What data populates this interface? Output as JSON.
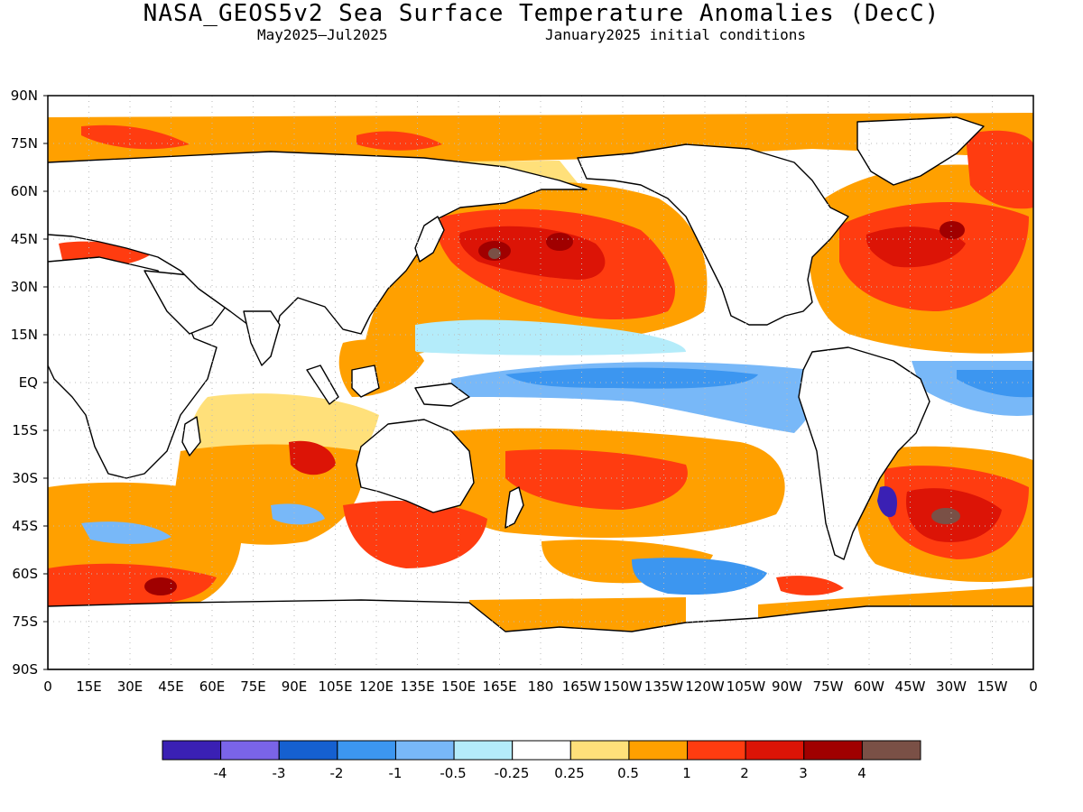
{
  "title": "NASA_GEOS5v2 Sea Surface Temperature Anomalies (DecC)",
  "subtitle_left": "May2025–Jul2025",
  "subtitle_right": "January2025 initial conditions",
  "lat_labels": [
    "90N",
    "75N",
    "60N",
    "45N",
    "30N",
    "15N",
    "EQ",
    "15S",
    "30S",
    "45S",
    "60S",
    "75S",
    "90S"
  ],
  "lon_labels": [
    "0",
    "15E",
    "30E",
    "45E",
    "60E",
    "75E",
    "90E",
    "105E",
    "120E",
    "135E",
    "150E",
    "165E",
    "180",
    "165W",
    "150W",
    "135W",
    "120W",
    "105W",
    "90W",
    "75W",
    "60W",
    "45W",
    "30W",
    "15W",
    "0"
  ],
  "legend": {
    "colors": [
      "#3a20b4",
      "#7a64e8",
      "#1560d0",
      "#3c96f0",
      "#78b8f8",
      "#b4ecfa",
      "#ffffff",
      "#ffe07a",
      "#ffa000",
      "#ff3c10",
      "#dc1406",
      "#a00000",
      "#7a5046"
    ],
    "tick_labels": [
      "-4",
      "-3",
      "-2",
      "-1",
      "-0.5",
      "-0.25",
      "0.25",
      "0.5",
      "1",
      "2",
      "3",
      "4"
    ]
  },
  "colors": {
    "land": "#ffffff",
    "coast": "#000000",
    "grid": "#bbbbbb"
  }
}
